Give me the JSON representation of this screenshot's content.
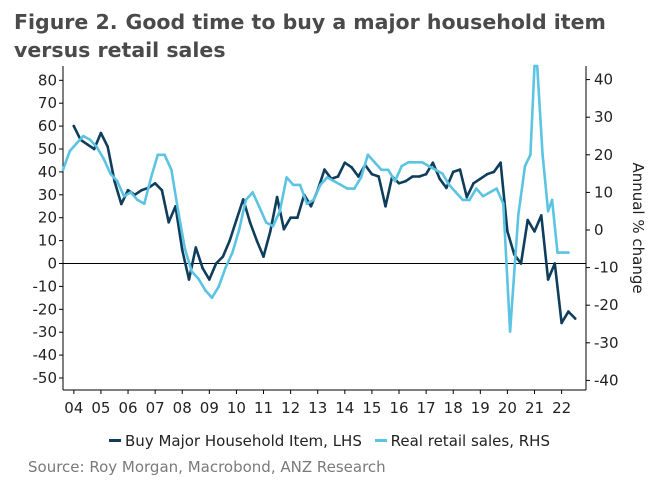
{
  "title": {
    "figure_label": "Figure 2.",
    "text": "Good time to buy a major household item versus retail sales"
  },
  "source": "Source: Roy Morgan, Macrobond, ANZ Research",
  "chart_data": {
    "type": "line",
    "title": "Good time to buy a major household item versus retail sales",
    "x_tick_labels": [
      "04",
      "05",
      "06",
      "07",
      "08",
      "09",
      "10",
      "11",
      "12",
      "13",
      "14",
      "15",
      "16",
      "17",
      "18",
      "19",
      "20",
      "21",
      "22"
    ],
    "x_range": [
      2003.6,
      2022.9
    ],
    "y_left": {
      "range": [
        -55,
        85
      ],
      "ticks": [
        80,
        70,
        60,
        50,
        40,
        30,
        20,
        10,
        0,
        -10,
        -20,
        -30,
        -40,
        -50
      ],
      "label": ""
    },
    "y_right": {
      "range": [
        -45,
        45
      ],
      "ticks": [
        40,
        30,
        20,
        10,
        0,
        -10,
        -20,
        -30,
        -40
      ],
      "label": "Annual % change"
    },
    "colors": {
      "buy": "#0f3d5c",
      "retail": "#5bc4e2",
      "zero_line": "#000000",
      "axis": "#000000"
    },
    "series": [
      {
        "name": "Buy Major Household Item, LHS",
        "axis": "left",
        "color": "#0f3d5c",
        "x": [
          2004.0,
          2004.25,
          2004.5,
          2004.75,
          2005.0,
          2005.25,
          2005.5,
          2005.75,
          2006.0,
          2006.25,
          2006.5,
          2006.75,
          2007.0,
          2007.25,
          2007.5,
          2007.75,
          2008.0,
          2008.25,
          2008.5,
          2008.75,
          2009.0,
          2009.25,
          2009.5,
          2009.75,
          2010.0,
          2010.25,
          2010.5,
          2010.75,
          2011.0,
          2011.25,
          2011.5,
          2011.75,
          2012.0,
          2012.25,
          2012.5,
          2012.75,
          2013.0,
          2013.25,
          2013.5,
          2013.75,
          2014.0,
          2014.25,
          2014.5,
          2014.75,
          2015.0,
          2015.25,
          2015.5,
          2015.75,
          2016.0,
          2016.25,
          2016.5,
          2016.75,
          2017.0,
          2017.25,
          2017.5,
          2017.75,
          2018.0,
          2018.25,
          2018.5,
          2018.75,
          2019.0,
          2019.25,
          2019.5,
          2019.75,
          2020.0,
          2020.25,
          2020.5,
          2020.75,
          2021.0,
          2021.25,
          2021.5,
          2021.75,
          2022.0,
          2022.25,
          2022.5
        ],
        "values": [
          60,
          54,
          52,
          50,
          57,
          51,
          36,
          26,
          32,
          30,
          32,
          33,
          35,
          32,
          18,
          25,
          6,
          -7,
          7,
          -2,
          -7,
          0,
          3,
          10,
          19,
          28,
          18,
          10,
          3,
          14,
          29,
          15,
          20,
          20,
          30,
          25,
          32,
          41,
          37,
          38,
          44,
          42,
          38,
          43,
          39,
          38,
          25,
          38,
          35,
          36,
          38,
          38,
          39,
          44,
          37,
          33,
          40,
          41,
          29,
          35,
          37,
          39,
          40,
          44,
          14,
          4,
          0,
          19,
          14,
          21,
          -7,
          0,
          -26,
          -21,
          -24
        ]
      },
      {
        "name": "Real retail sales, RHS",
        "axis": "right",
        "color": "#5bc4e2",
        "x": [
          2003.6,
          2003.85,
          2004.1,
          2004.35,
          2004.6,
          2004.85,
          2005.1,
          2005.35,
          2005.6,
          2005.85,
          2006.1,
          2006.35,
          2006.6,
          2006.85,
          2007.1,
          2007.35,
          2007.6,
          2007.85,
          2008.1,
          2008.35,
          2008.6,
          2008.85,
          2009.1,
          2009.35,
          2009.6,
          2009.85,
          2010.1,
          2010.35,
          2010.6,
          2010.85,
          2011.1,
          2011.35,
          2011.6,
          2011.85,
          2012.1,
          2012.35,
          2012.6,
          2012.85,
          2013.1,
          2013.35,
          2013.6,
          2013.85,
          2014.1,
          2014.35,
          2014.6,
          2014.85,
          2015.1,
          2015.35,
          2015.6,
          2015.85,
          2016.1,
          2016.35,
          2016.6,
          2016.85,
          2017.1,
          2017.35,
          2017.6,
          2017.85,
          2018.1,
          2018.35,
          2018.6,
          2018.85,
          2019.1,
          2019.35,
          2019.6,
          2019.85,
          2020.1,
          2020.4,
          2020.65,
          2020.85,
          2021.0,
          2021.1,
          2021.3,
          2021.5,
          2021.65,
          2021.85,
          2022.05,
          2022.25
        ],
        "values": [
          16,
          21,
          23,
          25,
          24,
          22,
          19,
          15,
          13,
          9,
          10,
          8,
          7,
          14,
          20,
          20,
          16,
          5,
          -5,
          -11,
          -13,
          -16,
          -18,
          -15,
          -10,
          -6,
          0,
          8,
          10,
          6,
          2,
          1,
          5,
          14,
          12,
          12,
          7,
          8,
          12,
          14,
          13,
          12,
          11,
          11,
          14,
          20,
          18,
          16,
          16,
          13,
          17,
          18,
          18,
          18,
          17,
          16,
          15,
          12,
          10,
          8,
          8,
          11,
          9,
          10,
          11,
          7,
          -27,
          4,
          17,
          20,
          45,
          45,
          20,
          5,
          8,
          -6,
          -6,
          -6
        ]
      }
    ]
  }
}
